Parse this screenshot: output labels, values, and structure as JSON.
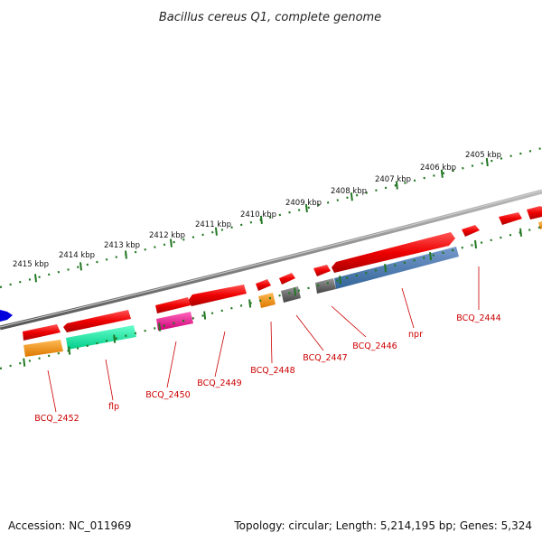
{
  "title": "Bacillus cereus Q1, complete genome",
  "footer": {
    "accession": "Accession: NC_011969",
    "summary": "Topology: circular; Length: 5,214,195 bp; Genes: 5,324"
  },
  "scale": {
    "unit": "kbp",
    "ticks": [
      {
        "label": "2405 kbp"
      },
      {
        "label": "2406 kbp"
      },
      {
        "label": "2407 kbp"
      },
      {
        "label": "2408 kbp"
      },
      {
        "label": "2409 kbp"
      },
      {
        "label": "2410 kbp"
      },
      {
        "label": "2411 kbp"
      },
      {
        "label": "2412 kbp"
      },
      {
        "label": "2413 kbp"
      },
      {
        "label": "2414 kbp"
      },
      {
        "label": "2415 kbp"
      }
    ]
  },
  "genes": [
    {
      "label": "BCQ_2444"
    },
    {
      "label": "npr"
    },
    {
      "label": "BCQ_2446"
    },
    {
      "label": "BCQ_2447"
    },
    {
      "label": "BCQ_2448"
    },
    {
      "label": "BCQ_2449"
    },
    {
      "label": "BCQ_2450"
    },
    {
      "label": "flp"
    },
    {
      "label": "BCQ_2452"
    }
  ],
  "colors": {
    "cds": "#ee0000",
    "backbone": "#888888",
    "tick": "#227722",
    "label": "#cc0000",
    "strand_forward": "#0000dd",
    "orange": "#ff8800",
    "green": "#11ee99",
    "pink": "#ee1188",
    "gray": "#666666",
    "blue": "#4477aa"
  }
}
